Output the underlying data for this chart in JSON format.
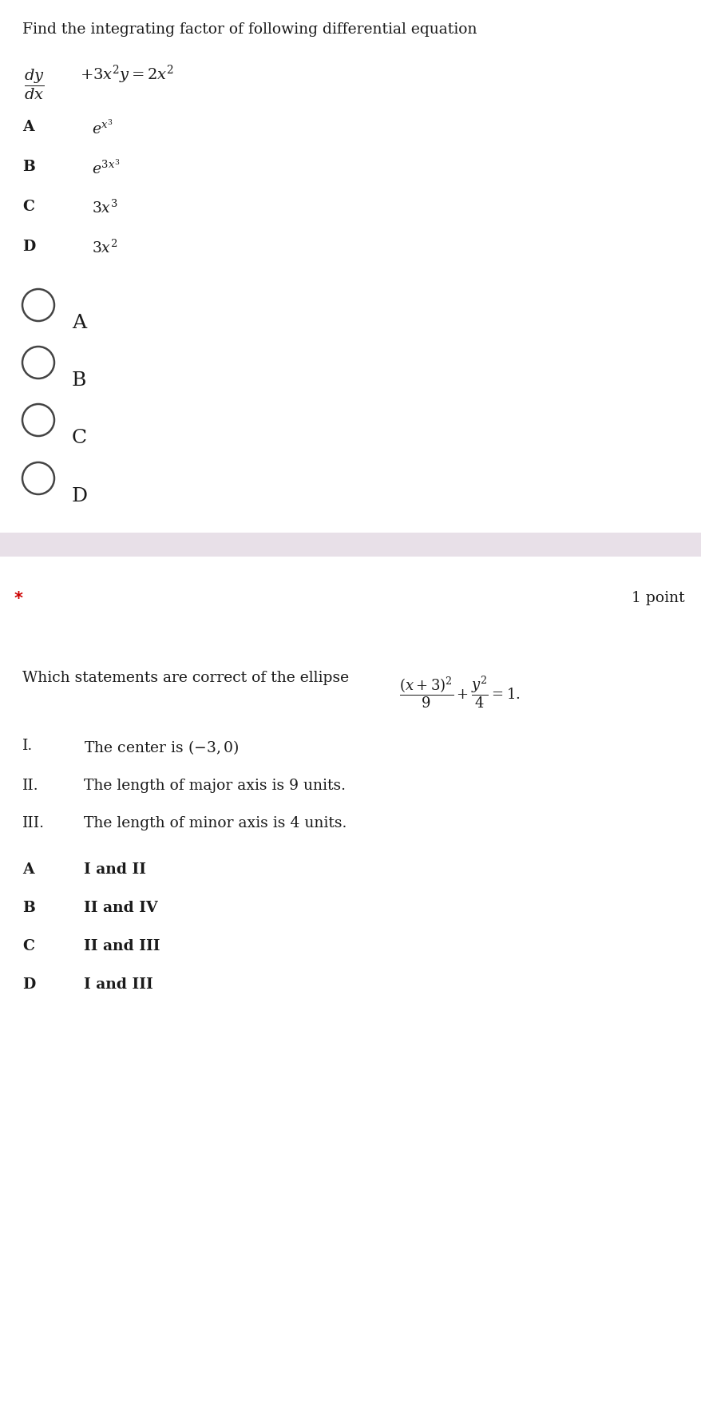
{
  "bg_color": "#ffffff",
  "separator_color": "#e8e0e8",
  "q1": {
    "title": "Find the integrating factor of following differential equation",
    "options": [
      {
        "label": "A",
        "math": "$e^{x^3}$"
      },
      {
        "label": "B",
        "math": "$e^{3x^3}$"
      },
      {
        "label": "C",
        "math": "$3x^3$"
      },
      {
        "label": "D",
        "math": "$3x^2$"
      }
    ],
    "radio_labels": [
      "A",
      "B",
      "C",
      "D"
    ],
    "title_fontsize": 13.5,
    "option_label_fontsize": 13.5,
    "option_math_fontsize": 13.5,
    "radio_fontsize": 18,
    "radio_circle_r": 20
  },
  "q2": {
    "star": "*",
    "points": "1 point",
    "question_text": "Which statements are correct of the ellipse",
    "statements": [
      {
        "label": "I.",
        "text": "The center is $(-3,0)$"
      },
      {
        "label": "II.",
        "text": "The length of major axis is 9 units."
      },
      {
        "label": "III.",
        "text": "The length of minor axis is 4 units."
      }
    ],
    "options": [
      {
        "label": "A",
        "text": "I and II"
      },
      {
        "label": "B",
        "text": "II and IV"
      },
      {
        "label": "C",
        "text": "II and III"
      },
      {
        "label": "D",
        "text": "I and III"
      }
    ],
    "fontsize": 13.5
  }
}
